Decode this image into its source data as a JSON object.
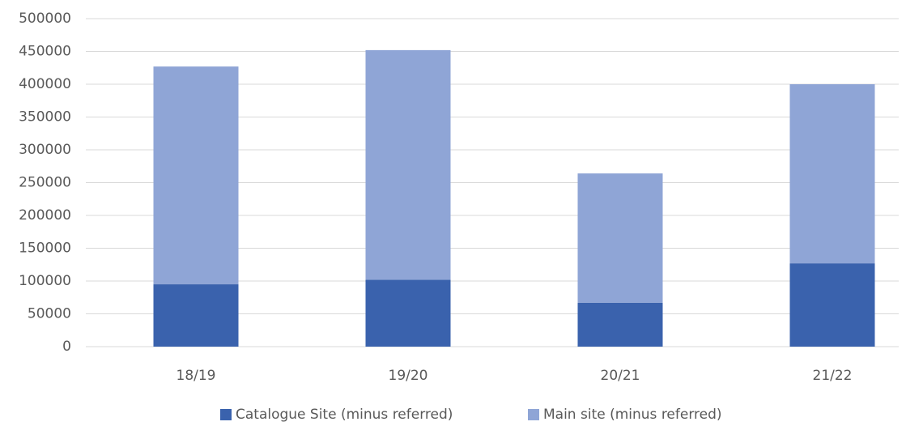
{
  "chart_data": {
    "type": "stacked_bar",
    "categories": [
      "18/19",
      "19/20",
      "20/21",
      "21/22"
    ],
    "series": [
      {
        "name": "Catalogue Site (minus referred)",
        "color": "#3a62ad",
        "values": [
          95000,
          102000,
          67000,
          127000
        ]
      },
      {
        "name": "Main site (minus referred)",
        "color": "#8fa5d6",
        "values": [
          332000,
          350000,
          197000,
          273000
        ]
      }
    ],
    "ylim": [
      0,
      500000
    ],
    "yticks": [
      0,
      50000,
      100000,
      150000,
      200000,
      250000,
      300000,
      350000,
      400000,
      450000,
      500000
    ],
    "grid": true,
    "legend": "bottom"
  }
}
